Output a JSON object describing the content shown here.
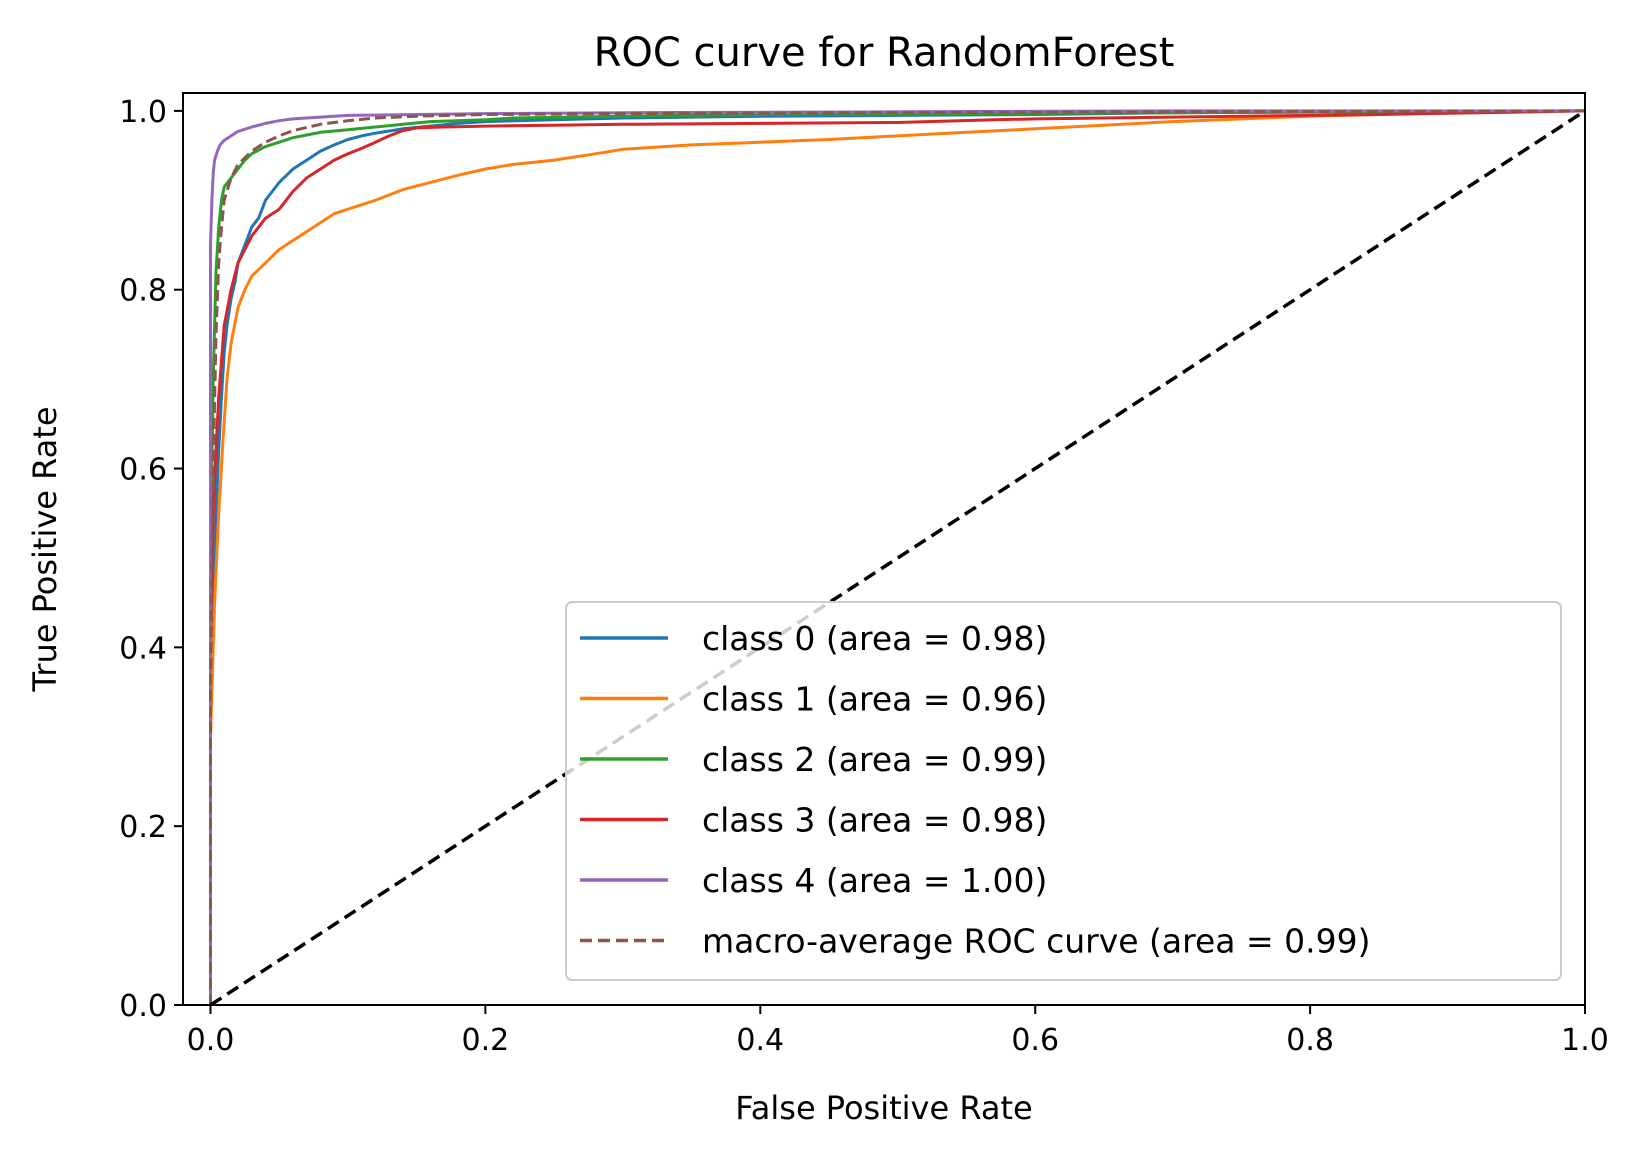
{
  "chart_data": {
    "type": "line",
    "title": "ROC curve for RandomForest",
    "xlabel": "False Positive Rate",
    "ylabel": "True Positive Rate",
    "xlim": [
      -0.02,
      1.0
    ],
    "ylim": [
      0.0,
      1.02
    ],
    "x_ticks": [
      "0.0",
      "0.2",
      "0.4",
      "0.6",
      "0.8",
      "1.0"
    ],
    "y_ticks": [
      "0.0",
      "0.2",
      "0.4",
      "0.6",
      "0.8",
      "1.0"
    ],
    "grid": false,
    "legend_position": "lower-right",
    "diagonal": {
      "x": [
        0,
        1
      ],
      "y": [
        0,
        1
      ],
      "color": "#000000",
      "style": "dashed"
    },
    "series": [
      {
        "name": "class 0 (area = 0.98)",
        "color": "#1f77b4",
        "style": "solid",
        "x": [
          0,
          0,
          0.002,
          0.004,
          0.006,
          0.008,
          0.01,
          0.012,
          0.015,
          0.018,
          0.02,
          0.025,
          0.03,
          0.035,
          0.04,
          0.045,
          0.05,
          0.06,
          0.07,
          0.08,
          0.09,
          0.1,
          0.11,
          0.12,
          0.14,
          0.16,
          0.18,
          0.2,
          0.25,
          0.3,
          0.4,
          0.5,
          0.6,
          0.7,
          1.0
        ],
        "y": [
          0,
          0.3,
          0.45,
          0.55,
          0.62,
          0.68,
          0.73,
          0.76,
          0.79,
          0.81,
          0.83,
          0.85,
          0.87,
          0.88,
          0.9,
          0.91,
          0.92,
          0.935,
          0.945,
          0.955,
          0.962,
          0.968,
          0.972,
          0.975,
          0.98,
          0.983,
          0.986,
          0.988,
          0.99,
          0.992,
          0.994,
          0.995,
          0.996,
          0.998,
          1.0
        ]
      },
      {
        "name": "class 1 (area = 0.96)",
        "color": "#ff7f0e",
        "style": "solid",
        "x": [
          0,
          0,
          0.003,
          0.006,
          0.009,
          0.012,
          0.015,
          0.02,
          0.025,
          0.03,
          0.04,
          0.05,
          0.06,
          0.07,
          0.08,
          0.09,
          0.1,
          0.12,
          0.14,
          0.16,
          0.18,
          0.2,
          0.22,
          0.25,
          0.28,
          0.3,
          0.35,
          0.4,
          0.45,
          0.5,
          0.55,
          0.6,
          0.65,
          0.7,
          0.8,
          0.9,
          1.0
        ],
        "y": [
          0,
          0.3,
          0.45,
          0.55,
          0.63,
          0.7,
          0.74,
          0.78,
          0.8,
          0.815,
          0.83,
          0.845,
          0.855,
          0.865,
          0.875,
          0.885,
          0.89,
          0.9,
          0.912,
          0.92,
          0.928,
          0.935,
          0.94,
          0.945,
          0.952,
          0.957,
          0.962,
          0.965,
          0.968,
          0.972,
          0.976,
          0.98,
          0.984,
          0.988,
          0.994,
          0.998,
          1.0
        ]
      },
      {
        "name": "class 2 (area = 0.99)",
        "color": "#2ca02c",
        "style": "solid",
        "x": [
          0,
          0,
          0.002,
          0.004,
          0.006,
          0.008,
          0.01,
          0.015,
          0.02,
          0.025,
          0.03,
          0.04,
          0.05,
          0.06,
          0.07,
          0.08,
          0.1,
          0.12,
          0.14,
          0.16,
          0.2,
          0.22,
          0.3,
          0.4,
          0.57,
          0.7,
          1.0
        ],
        "y": [
          0,
          0.5,
          0.7,
          0.82,
          0.87,
          0.9,
          0.915,
          0.925,
          0.935,
          0.945,
          0.952,
          0.96,
          0.965,
          0.97,
          0.973,
          0.976,
          0.979,
          0.982,
          0.985,
          0.988,
          0.99,
          0.992,
          0.994,
          0.996,
          0.997,
          0.998,
          1.0
        ]
      },
      {
        "name": "class 3 (area = 0.98)",
        "color": "#d62728",
        "style": "solid",
        "x": [
          0,
          0,
          0.002,
          0.004,
          0.006,
          0.008,
          0.01,
          0.015,
          0.02,
          0.03,
          0.04,
          0.05,
          0.06,
          0.07,
          0.08,
          0.09,
          0.1,
          0.11,
          0.12,
          0.13,
          0.14,
          0.15,
          0.17,
          0.2,
          0.25,
          0.3,
          0.4,
          0.5,
          0.57,
          0.6,
          0.7,
          0.8,
          0.85,
          1.0
        ],
        "y": [
          0,
          0.4,
          0.55,
          0.62,
          0.68,
          0.72,
          0.76,
          0.8,
          0.83,
          0.86,
          0.88,
          0.89,
          0.91,
          0.925,
          0.935,
          0.945,
          0.952,
          0.958,
          0.965,
          0.972,
          0.978,
          0.981,
          0.982,
          0.983,
          0.984,
          0.985,
          0.986,
          0.987,
          0.99,
          0.991,
          0.993,
          0.995,
          0.996,
          1.0
        ]
      },
      {
        "name": "class 4 (area = 1.00)",
        "color": "#9467bd",
        "style": "solid",
        "x": [
          0,
          0,
          0.001,
          0.002,
          0.003,
          0.005,
          0.007,
          0.01,
          0.015,
          0.02,
          0.03,
          0.04,
          0.05,
          0.06,
          0.08,
          0.1,
          0.15,
          0.2,
          0.3,
          0.5,
          0.7,
          1.0
        ],
        "y": [
          0,
          0.85,
          0.9,
          0.93,
          0.945,
          0.955,
          0.962,
          0.967,
          0.972,
          0.977,
          0.982,
          0.986,
          0.989,
          0.991,
          0.993,
          0.995,
          0.996,
          0.997,
          0.998,
          0.999,
          1.0,
          1.0
        ]
      },
      {
        "name": "macro-average ROC curve (area = 0.99)",
        "color": "#8c564b",
        "style": "dashed",
        "x": [
          0,
          0,
          0.002,
          0.004,
          0.006,
          0.008,
          0.01,
          0.015,
          0.02,
          0.03,
          0.04,
          0.05,
          0.06,
          0.08,
          0.1,
          0.12,
          0.15,
          0.2,
          0.3,
          0.5,
          0.7,
          1.0
        ],
        "y": [
          0,
          0.35,
          0.6,
          0.75,
          0.83,
          0.87,
          0.9,
          0.925,
          0.94,
          0.955,
          0.965,
          0.972,
          0.978,
          0.985,
          0.989,
          0.992,
          0.994,
          0.996,
          0.997,
          0.998,
          0.999,
          1.0
        ]
      }
    ]
  }
}
